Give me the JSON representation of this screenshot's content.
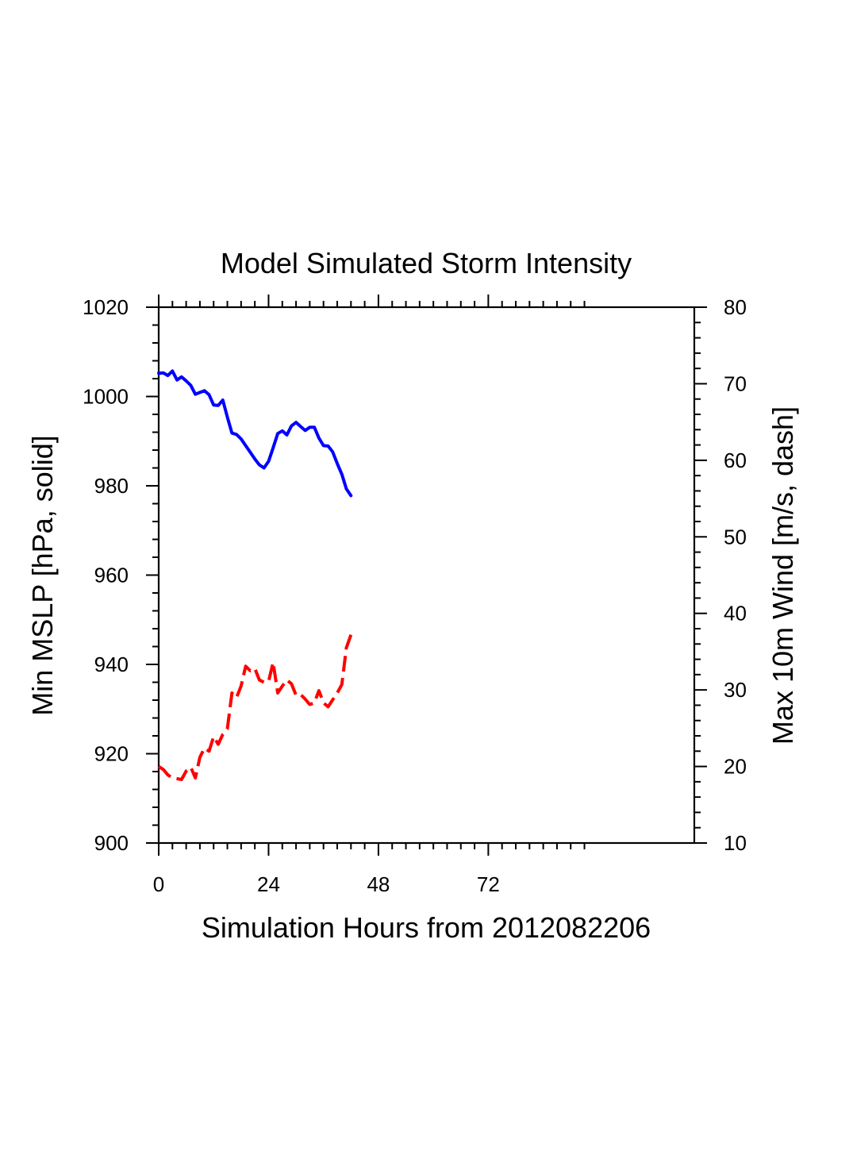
{
  "chart_data": {
    "type": "line",
    "title": "Model Simulated Storm Intensity",
    "xlabel": "Simulation Hours from 2012082206",
    "ylabel_left": "Min MSLP  [hPa, solid]",
    "ylabel_right": "Max 10m Wind  [m/s, dash]",
    "xlim": [
      0,
      117
    ],
    "ylim_left": [
      900,
      1020
    ],
    "ylim_right": [
      10,
      80
    ],
    "x_ticks": [
      0,
      24,
      48,
      72
    ],
    "y_left_ticks": [
      900,
      920,
      940,
      960,
      980,
      1000,
      1020
    ],
    "y_right_ticks": [
      10,
      20,
      30,
      40,
      50,
      60,
      70,
      80
    ],
    "grid": false,
    "series": [
      {
        "name": "Min MSLP",
        "axis": "left",
        "style": "solid",
        "color": "#0000ff",
        "x": [
          0,
          1,
          2,
          3,
          4,
          5,
          6,
          7,
          8,
          9,
          10,
          11,
          12,
          13,
          14,
          15,
          16,
          17,
          18,
          19,
          20,
          21,
          22,
          23,
          24,
          25,
          26,
          27,
          28,
          29,
          30,
          31,
          32,
          33,
          34,
          35,
          36,
          37,
          38,
          39,
          40,
          41,
          42
        ],
        "values": [
          1005.2,
          1005.3,
          1004.7,
          1005.7,
          1003.7,
          1004.4,
          1003.5,
          1002.5,
          1000.5,
          1000.9,
          1001.3,
          1000.4,
          998.1,
          998.0,
          999.2,
          995.4,
          991.8,
          991.5,
          990.5,
          989.0,
          987.5,
          986.0,
          984.7,
          984.0,
          985.5,
          988.5,
          991.7,
          992.3,
          991.4,
          993.4,
          994.2,
          993.3,
          992.4,
          993.1,
          993.1,
          990.7,
          989.0,
          988.9,
          987.6,
          985.0,
          982.6,
          979.3,
          977.8
        ]
      },
      {
        "name": "Max 10m Wind",
        "axis": "right",
        "style": "dash",
        "color": "#ff0000",
        "x": [
          0,
          1,
          2,
          3,
          4,
          5,
          6,
          7,
          8,
          9,
          10,
          11,
          12,
          13,
          14,
          15,
          16,
          17,
          18,
          19,
          20,
          21,
          22,
          23,
          24,
          25,
          26,
          27,
          28,
          29,
          30,
          31,
          32,
          33,
          34,
          35,
          36,
          37,
          38,
          39,
          40,
          41,
          42
        ],
        "values": [
          20.0,
          19.6,
          18.9,
          18.5,
          18.4,
          18.3,
          19.4,
          19.9,
          18.5,
          21.2,
          22.4,
          22.0,
          23.9,
          22.9,
          24.2,
          24.9,
          29.6,
          29.0,
          30.5,
          33.1,
          32.5,
          32.8,
          31.3,
          31.0,
          31.1,
          33.6,
          29.6,
          30.5,
          31.3,
          30.8,
          29.3,
          29.4,
          28.8,
          28.1,
          28.3,
          29.9,
          28.3,
          27.8,
          28.7,
          29.6,
          30.7,
          35.5,
          37.2
        ]
      }
    ]
  }
}
